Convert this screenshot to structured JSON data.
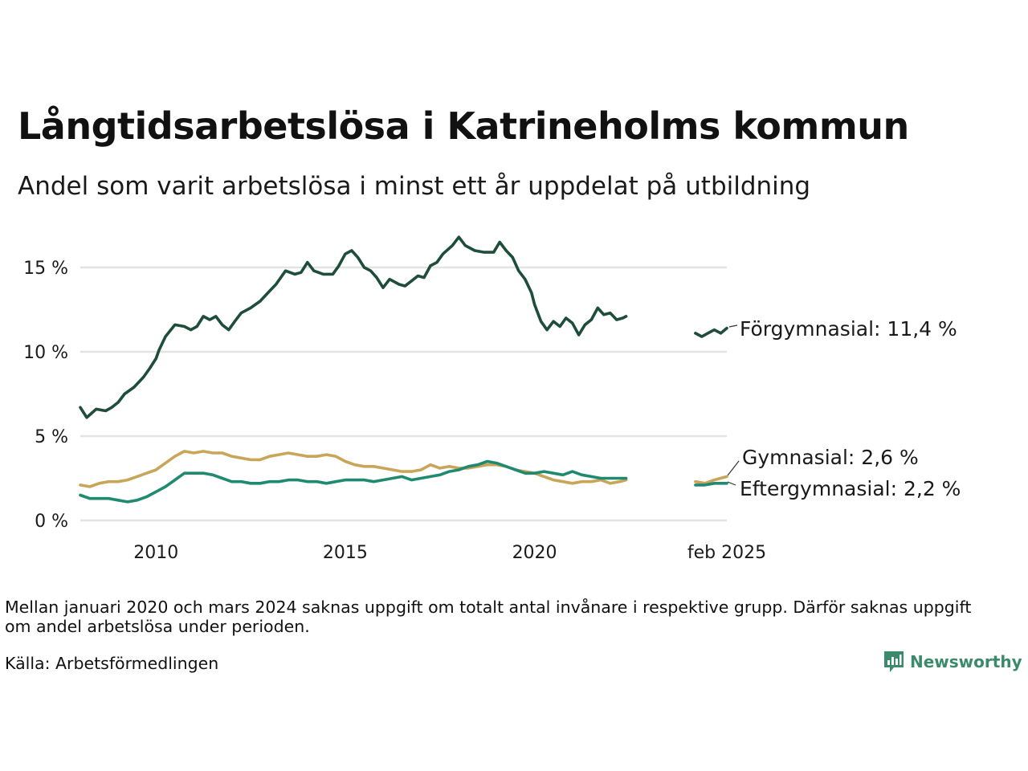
{
  "title": "Långtidsarbetslösa i Katrineholms kommun",
  "subtitle": "Andel som varit arbetslösa i minst ett år uppdelat på utbildning",
  "note": "Mellan januari 2020 och mars 2024 saknas uppgift om totalt antal invånare i respektive grupp. Därför saknas uppgift om andel arbetslösa under perioden.",
  "source": "Källa: Arbetsförmedlingen",
  "brand": {
    "name": "Newsworthy",
    "logo_icon": "bar-chart-speech-bubble-icon"
  },
  "chart_data": {
    "type": "line",
    "x_ticks": [
      {
        "x": 2010.0,
        "label": "2010"
      },
      {
        "x": 2015.0,
        "label": "2015"
      },
      {
        "x": 2020.0,
        "label": "2020"
      },
      {
        "x": 2025.08,
        "label": "feb 2025"
      }
    ],
    "y_ticks": [
      {
        "y": 0,
        "label": "0 %"
      },
      {
        "y": 5,
        "label": "5 %"
      },
      {
        "y": 10,
        "label": "10 %"
      },
      {
        "y": 15,
        "label": "15 %"
      }
    ],
    "ylim": [
      0,
      17
    ],
    "xlim": [
      2008.0,
      2025.08
    ],
    "grid": true,
    "series": [
      {
        "name": "Förgymnasial",
        "end_label": "Förgymnasial: 11,4 %",
        "color": "#1e4d3a",
        "segments": [
          [
            [
              2008.0,
              6.7
            ],
            [
              2008.17,
              6.1
            ],
            [
              2008.42,
              6.6
            ],
            [
              2008.67,
              6.5
            ],
            [
              2008.83,
              6.7
            ],
            [
              2009.0,
              7.0
            ],
            [
              2009.17,
              7.5
            ],
            [
              2009.42,
              7.9
            ],
            [
              2009.67,
              8.5
            ],
            [
              2009.83,
              9.0
            ],
            [
              2010.0,
              9.6
            ],
            [
              2010.08,
              10.1
            ],
            [
              2010.25,
              10.9
            ],
            [
              2010.5,
              11.6
            ],
            [
              2010.75,
              11.5
            ],
            [
              2010.92,
              11.3
            ],
            [
              2011.08,
              11.5
            ],
            [
              2011.25,
              12.1
            ],
            [
              2011.42,
              11.9
            ],
            [
              2011.58,
              12.1
            ],
            [
              2011.75,
              11.6
            ],
            [
              2011.92,
              11.3
            ],
            [
              2012.08,
              11.8
            ],
            [
              2012.25,
              12.3
            ],
            [
              2012.5,
              12.6
            ],
            [
              2012.75,
              13.0
            ],
            [
              2013.0,
              13.6
            ],
            [
              2013.17,
              14.0
            ],
            [
              2013.42,
              14.8
            ],
            [
              2013.67,
              14.6
            ],
            [
              2013.83,
              14.7
            ],
            [
              2014.0,
              15.3
            ],
            [
              2014.17,
              14.8
            ],
            [
              2014.42,
              14.6
            ],
            [
              2014.67,
              14.6
            ],
            [
              2014.83,
              15.1
            ],
            [
              2015.0,
              15.8
            ],
            [
              2015.17,
              16.0
            ],
            [
              2015.33,
              15.6
            ],
            [
              2015.5,
              15.0
            ],
            [
              2015.67,
              14.8
            ],
            [
              2015.83,
              14.4
            ],
            [
              2016.0,
              13.8
            ],
            [
              2016.17,
              14.3
            ],
            [
              2016.42,
              14.0
            ],
            [
              2016.58,
              13.9
            ],
            [
              2016.75,
              14.2
            ],
            [
              2016.92,
              14.5
            ],
            [
              2017.08,
              14.4
            ],
            [
              2017.25,
              15.1
            ],
            [
              2017.42,
              15.3
            ],
            [
              2017.58,
              15.8
            ],
            [
              2017.83,
              16.3
            ],
            [
              2018.0,
              16.8
            ],
            [
              2018.17,
              16.3
            ],
            [
              2018.42,
              16.0
            ],
            [
              2018.67,
              15.9
            ],
            [
              2018.92,
              15.9
            ],
            [
              2019.08,
              16.5
            ],
            [
              2019.25,
              16.0
            ],
            [
              2019.42,
              15.6
            ],
            [
              2019.58,
              14.8
            ],
            [
              2019.75,
              14.3
            ],
            [
              2019.92,
              13.5
            ],
            [
              2020.0,
              12.8
            ],
            [
              2020.17,
              11.8
            ],
            [
              2020.33,
              11.3
            ],
            [
              2020.5,
              11.8
            ],
            [
              2020.67,
              11.5
            ],
            [
              2020.83,
              12.0
            ],
            [
              2021.0,
              11.7
            ],
            [
              2021.17,
              11.0
            ],
            [
              2021.33,
              11.6
            ],
            [
              2021.5,
              11.9
            ],
            [
              2021.67,
              12.6
            ],
            [
              2021.83,
              12.2
            ],
            [
              2022.0,
              12.3
            ],
            [
              2022.17,
              11.9
            ],
            [
              2022.33,
              12.0
            ],
            [
              2022.42,
              12.1
            ]
          ],
          [
            [
              2024.25,
              11.1
            ],
            [
              2024.42,
              10.9
            ],
            [
              2024.58,
              11.1
            ],
            [
              2024.75,
              11.3
            ],
            [
              2024.92,
              11.1
            ],
            [
              2025.08,
              11.4
            ]
          ]
        ]
      },
      {
        "name": "Gymnasial",
        "end_label": "Gymnasial:  2,6 %",
        "color": "#c9a55a",
        "segments": [
          [
            [
              2008.0,
              2.1
            ],
            [
              2008.25,
              2.0
            ],
            [
              2008.5,
              2.2
            ],
            [
              2008.75,
              2.3
            ],
            [
              2009.0,
              2.3
            ],
            [
              2009.25,
              2.4
            ],
            [
              2009.5,
              2.6
            ],
            [
              2009.75,
              2.8
            ],
            [
              2010.0,
              3.0
            ],
            [
              2010.25,
              3.4
            ],
            [
              2010.5,
              3.8
            ],
            [
              2010.75,
              4.1
            ],
            [
              2011.0,
              4.0
            ],
            [
              2011.25,
              4.1
            ],
            [
              2011.5,
              4.0
            ],
            [
              2011.75,
              4.0
            ],
            [
              2012.0,
              3.8
            ],
            [
              2012.25,
              3.7
            ],
            [
              2012.5,
              3.6
            ],
            [
              2012.75,
              3.6
            ],
            [
              2013.0,
              3.8
            ],
            [
              2013.25,
              3.9
            ],
            [
              2013.5,
              4.0
            ],
            [
              2013.75,
              3.9
            ],
            [
              2014.0,
              3.8
            ],
            [
              2014.25,
              3.8
            ],
            [
              2014.5,
              3.9
            ],
            [
              2014.75,
              3.8
            ],
            [
              2015.0,
              3.5
            ],
            [
              2015.25,
              3.3
            ],
            [
              2015.5,
              3.2
            ],
            [
              2015.75,
              3.2
            ],
            [
              2016.0,
              3.1
            ],
            [
              2016.25,
              3.0
            ],
            [
              2016.5,
              2.9
            ],
            [
              2016.75,
              2.9
            ],
            [
              2017.0,
              3.0
            ],
            [
              2017.25,
              3.3
            ],
            [
              2017.5,
              3.1
            ],
            [
              2017.75,
              3.2
            ],
            [
              2018.0,
              3.1
            ],
            [
              2018.25,
              3.1
            ],
            [
              2018.5,
              3.2
            ],
            [
              2018.75,
              3.3
            ],
            [
              2019.0,
              3.3
            ],
            [
              2019.25,
              3.2
            ],
            [
              2019.5,
              3.0
            ],
            [
              2019.75,
              2.9
            ],
            [
              2020.0,
              2.8
            ],
            [
              2020.25,
              2.6
            ],
            [
              2020.5,
              2.4
            ],
            [
              2020.75,
              2.3
            ],
            [
              2021.0,
              2.2
            ],
            [
              2021.25,
              2.3
            ],
            [
              2021.5,
              2.3
            ],
            [
              2021.75,
              2.4
            ],
            [
              2022.0,
              2.2
            ],
            [
              2022.25,
              2.3
            ],
            [
              2022.42,
              2.4
            ]
          ],
          [
            [
              2024.25,
              2.3
            ],
            [
              2024.5,
              2.2
            ],
            [
              2024.75,
              2.4
            ],
            [
              2025.08,
              2.6
            ]
          ]
        ]
      },
      {
        "name": "Eftergymnasial",
        "end_label": "Eftergymnasial:  2,2 %",
        "color": "#1f8a70",
        "segments": [
          [
            [
              2008.0,
              1.5
            ],
            [
              2008.25,
              1.3
            ],
            [
              2008.5,
              1.3
            ],
            [
              2008.75,
              1.3
            ],
            [
              2009.0,
              1.2
            ],
            [
              2009.25,
              1.1
            ],
            [
              2009.5,
              1.2
            ],
            [
              2009.75,
              1.4
            ],
            [
              2010.0,
              1.7
            ],
            [
              2010.25,
              2.0
            ],
            [
              2010.5,
              2.4
            ],
            [
              2010.75,
              2.8
            ],
            [
              2011.0,
              2.8
            ],
            [
              2011.25,
              2.8
            ],
            [
              2011.5,
              2.7
            ],
            [
              2011.75,
              2.5
            ],
            [
              2012.0,
              2.3
            ],
            [
              2012.25,
              2.3
            ],
            [
              2012.5,
              2.2
            ],
            [
              2012.75,
              2.2
            ],
            [
              2013.0,
              2.3
            ],
            [
              2013.25,
              2.3
            ],
            [
              2013.5,
              2.4
            ],
            [
              2013.75,
              2.4
            ],
            [
              2014.0,
              2.3
            ],
            [
              2014.25,
              2.3
            ],
            [
              2014.5,
              2.2
            ],
            [
              2014.75,
              2.3
            ],
            [
              2015.0,
              2.4
            ],
            [
              2015.25,
              2.4
            ],
            [
              2015.5,
              2.4
            ],
            [
              2015.75,
              2.3
            ],
            [
              2016.0,
              2.4
            ],
            [
              2016.25,
              2.5
            ],
            [
              2016.5,
              2.6
            ],
            [
              2016.75,
              2.4
            ],
            [
              2017.0,
              2.5
            ],
            [
              2017.25,
              2.6
            ],
            [
              2017.5,
              2.7
            ],
            [
              2017.75,
              2.9
            ],
            [
              2018.0,
              3.0
            ],
            [
              2018.25,
              3.2
            ],
            [
              2018.5,
              3.3
            ],
            [
              2018.75,
              3.5
            ],
            [
              2019.0,
              3.4
            ],
            [
              2019.25,
              3.2
            ],
            [
              2019.5,
              3.0
            ],
            [
              2019.75,
              2.8
            ],
            [
              2020.0,
              2.8
            ],
            [
              2020.25,
              2.9
            ],
            [
              2020.5,
              2.8
            ],
            [
              2020.75,
              2.7
            ],
            [
              2021.0,
              2.9
            ],
            [
              2021.25,
              2.7
            ],
            [
              2021.5,
              2.6
            ],
            [
              2021.75,
              2.5
            ],
            [
              2022.0,
              2.5
            ],
            [
              2022.25,
              2.5
            ],
            [
              2022.42,
              2.5
            ]
          ],
          [
            [
              2024.25,
              2.1
            ],
            [
              2024.5,
              2.1
            ],
            [
              2024.75,
              2.2
            ],
            [
              2025.08,
              2.2
            ]
          ]
        ]
      }
    ]
  }
}
